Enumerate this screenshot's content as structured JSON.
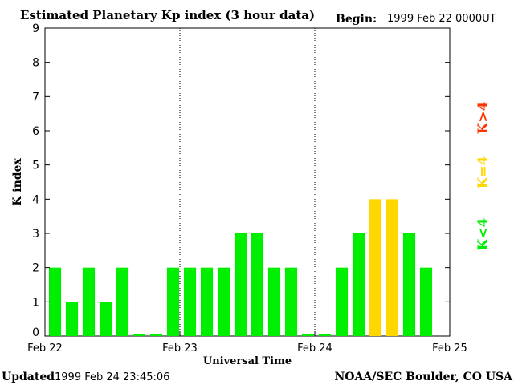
{
  "header": {
    "title": "Estimated Planetary Kp index (3 hour data)",
    "begin_label": "Begin:",
    "begin_value": "1999 Feb 22 0000UT"
  },
  "footer": {
    "updated_label": "Updated",
    "updated_value": "1999 Feb 24 23:45:06",
    "source": "NOAA/SEC Boulder, CO USA"
  },
  "legend": {
    "below": "K<4",
    "equal": "K=4",
    "above": "K>4"
  },
  "colors": {
    "below": "#00ee00",
    "equal": "#ffd700",
    "above": "#ff3300"
  },
  "chart_data": {
    "type": "bar",
    "title": "Estimated Planetary Kp index (3 hour data)",
    "xlabel": "Universal Time",
    "ylabel": "K index",
    "ylim": [
      0,
      9
    ],
    "yticks": [
      0,
      1,
      2,
      3,
      4,
      5,
      6,
      7,
      8,
      9
    ],
    "xticks": [
      "Feb 22",
      "Feb 23",
      "Feb 24",
      "Feb 25"
    ],
    "values": [
      2,
      1,
      2,
      1,
      2,
      0.07,
      0.07,
      2,
      2,
      2,
      2,
      3,
      3,
      2,
      2,
      0.07,
      0.07,
      2,
      3,
      4,
      4,
      3,
      2
    ]
  }
}
